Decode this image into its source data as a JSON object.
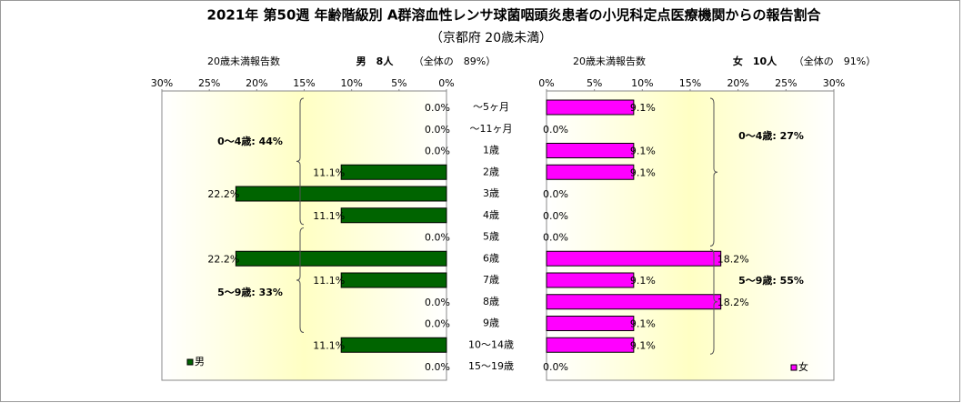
{
  "title": "2021年 第50週 年齢階級別 A群溶血性レンサ球菌咽頭炎患者の小児科定点医療機関からの報告割合",
  "subtitle": "（京都府 20歳未満）",
  "chart_data": [
    {
      "type": "hbar",
      "reversed": true,
      "header": [
        "20歳未満報告数",
        "男　8人",
        "（全体の　89%）"
      ],
      "categories": [
        "～5ヶ月",
        "～11ヶ月",
        "1歳",
        "2歳",
        "3歳",
        "4歳",
        "5歳",
        "6歳",
        "7歳",
        "8歳",
        "9歳",
        "10～14歳",
        "15～19歳"
      ],
      "series": [
        {
          "name": "男",
          "color": "#006400",
          "values": [
            0,
            0,
            0,
            11.1,
            22.2,
            11.1,
            0,
            22.2,
            11.1,
            0,
            0,
            11.1,
            0
          ],
          "value_labels": [
            "0.0%",
            "0.0%",
            "0.0%",
            "11.1%",
            "22.2%",
            "11.1%",
            "0.0%",
            "22.2%",
            "11.1%",
            "0.0%",
            "0.0%",
            "11.1%",
            "0.0%"
          ]
        }
      ],
      "xlim": [
        0,
        30
      ],
      "xticks": [
        {
          "value": 0,
          "label": "0%"
        },
        {
          "value": 5,
          "label": "5%"
        },
        {
          "value": 10,
          "label": "10%"
        },
        {
          "value": 15,
          "label": "15%"
        },
        {
          "value": 20,
          "label": "20%"
        },
        {
          "value": 25,
          "label": "25%"
        },
        {
          "value": 30,
          "label": "30%"
        }
      ],
      "annotations": [
        "0～4歳: 44%",
        "5～9歳: 33%"
      ],
      "legend": "lower left"
    },
    {
      "type": "hbar",
      "reversed": false,
      "header": [
        "20歳未満報告数",
        "女　10人",
        "（全体の　91%）"
      ],
      "series": [
        {
          "name": "女",
          "color": "#ff00ff",
          "values": [
            9.1,
            0,
            9.1,
            9.1,
            0,
            0,
            0,
            18.2,
            9.1,
            18.2,
            9.1,
            9.1,
            0
          ],
          "value_labels": [
            "9.1%",
            "0.0%",
            "9.1%",
            "9.1%",
            "0.0%",
            "0.0%",
            "0.0%",
            "18.2%",
            "9.1%",
            "18.2%",
            "9.1%",
            "9.1%",
            "0.0%"
          ]
        }
      ],
      "xlim": [
        0,
        30
      ],
      "xticks": [
        {
          "value": 0,
          "label": "0%"
        },
        {
          "value": 5,
          "label": "5%"
        },
        {
          "value": 10,
          "label": "10%"
        },
        {
          "value": 15,
          "label": "15%"
        },
        {
          "value": 20,
          "label": "20%"
        },
        {
          "value": 25,
          "label": "25%"
        },
        {
          "value": 30,
          "label": "30%"
        }
      ],
      "annotations": [
        "0～4歳: 27%",
        "5～9歳: 55%"
      ],
      "legend": "lower right"
    }
  ]
}
